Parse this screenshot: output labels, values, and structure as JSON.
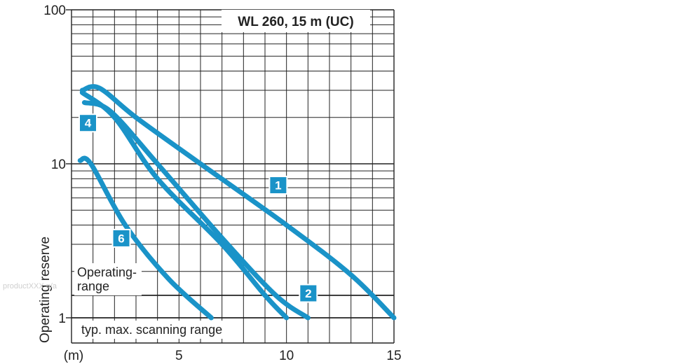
{
  "chart_data": {
    "type": "line",
    "title": "WL 260, 15 m (UC)",
    "xlabel": "(m)",
    "ylabel": "Operating reserve",
    "y_scale": "log",
    "xlim": [
      0,
      15
    ],
    "ylim": [
      0.7,
      100
    ],
    "x_ticks": [
      "5",
      "10",
      "15"
    ],
    "y_ticks": [
      "1",
      "10",
      "100"
    ],
    "grid": true,
    "annotations": {
      "operating_range": "Operating-\nrange",
      "scanning_range": "typ. max. scanning range",
      "watermark": "productXXX n/a"
    },
    "reference_lines": [
      1.0,
      1.4
    ],
    "colors": {
      "curve": "#1a93c8",
      "grid": "#222222"
    },
    "series": [
      {
        "name": "1",
        "label_at": [
          9.6,
          7.3
        ],
        "x": [
          0.5,
          1.3,
          3,
          6,
          10,
          13,
          15
        ],
        "y": [
          30,
          31,
          20,
          10,
          4,
          1.9,
          1.0
        ]
      },
      {
        "name": "2",
        "label_at": [
          11,
          1.45
        ],
        "x": [
          0.6,
          1.8,
          4,
          7,
          9.5,
          11
        ],
        "y": [
          25,
          22,
          10,
          3.3,
          1.4,
          1.0
        ]
      },
      {
        "name": "4",
        "label_at": [
          0.75,
          18.5
        ],
        "x": [
          0.5,
          2,
          4,
          7,
          9,
          10
        ],
        "y": [
          29,
          20,
          8,
          3,
          1.4,
          1.0
        ]
      },
      {
        "name": "6",
        "label_at": [
          2.3,
          3.3
        ],
        "x": [
          0.4,
          0.9,
          2.5,
          4.5,
          6.5
        ],
        "y": [
          10.5,
          10,
          4,
          1.8,
          1.0
        ]
      }
    ]
  }
}
